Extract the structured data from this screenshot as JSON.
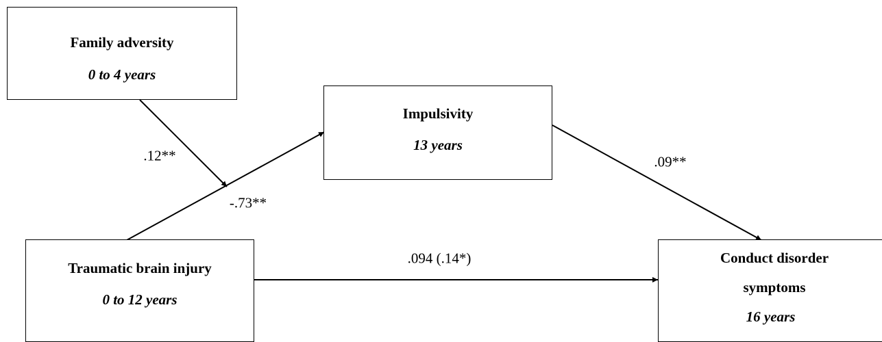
{
  "nodes": [
    {
      "label": "Family adversity",
      "sublabel": "0 to 4 years"
    },
    {
      "label": "Impulsivity",
      "sublabel": "13 years"
    },
    {
      "label": "Traumatic brain injury",
      "sublabel": "0 to 12 years"
    },
    {
      "label": "Conduct disorder symptoms",
      "sublabel": "16 years"
    }
  ],
  "edges": [
    {
      "label": ".12**"
    },
    {
      "label": "-.73**"
    },
    {
      "label": ".09**"
    },
    {
      "label": ".094 (.14*)"
    }
  ]
}
